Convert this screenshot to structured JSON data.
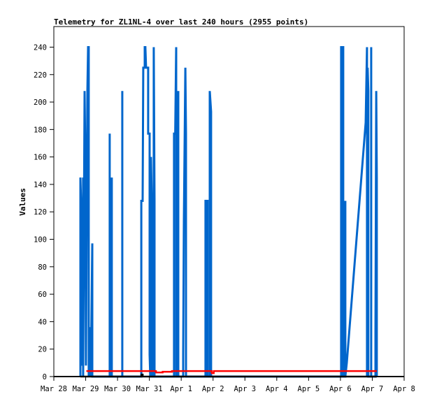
{
  "chart_data": {
    "type": "line",
    "title": "Telemetry for ZL1NL-4 over last 240 hours (2955 points)",
    "xlabel": "",
    "ylabel": "Values",
    "ylim": [
      0,
      255
    ],
    "yticks": [
      0,
      20,
      40,
      60,
      80,
      100,
      120,
      140,
      160,
      180,
      200,
      220,
      240
    ],
    "xticks": [
      "Mar 28",
      "Mar 29",
      "Mar 30",
      "Mar 31",
      "Apr 1",
      "Apr 2",
      "Apr 3",
      "Apr 4",
      "Apr 5",
      "Apr 6",
      "Apr 7",
      "Apr 8"
    ],
    "grid": false,
    "legend": "none",
    "series": [
      {
        "color": "#0066cc",
        "points": [
          [
            "Mar 28 20:00",
            0
          ],
          [
            "Mar 28 20:00",
            145
          ],
          [
            "Mar 28 20:30",
            128
          ],
          [
            "Mar 28 21:06",
            13
          ],
          [
            "Mar 28 21:36",
            8
          ],
          [
            "Mar 28 22:06",
            145
          ],
          [
            "Mar 28 22:06",
            0
          ],
          [
            "Mar 28 23:12",
            208
          ],
          [
            "Mar 28 23:42",
            160
          ],
          [
            "Mar 29 00:12",
            8
          ],
          [
            "Mar 29 01:18",
            208
          ],
          [
            "Mar 29 01:48",
            240
          ],
          [
            "Mar 29 02:18",
            240
          ],
          [
            "Mar 29 02:18",
            0
          ],
          [
            "Mar 29 03:24",
            12
          ],
          [
            "Mar 29 03:54",
            36
          ],
          [
            "Mar 29 03:54",
            0
          ],
          [
            "Mar 29 05:00",
            97
          ],
          [
            "Mar 29 05:00",
            0
          ],
          [
            "Mar 29 18:06",
            0
          ],
          [
            "Mar 29 18:06",
            177
          ],
          [
            "Mar 29 18:06",
            0
          ],
          [
            "Mar 29 19:42",
            145
          ],
          [
            "Mar 29 19:42",
            0
          ],
          [
            "Mar 30 03:36",
            0
          ],
          [
            "Mar 30 03:36",
            208
          ],
          [
            "Mar 30 03:36",
            0
          ],
          [
            "Mar 30 17:54",
            0
          ],
          [
            "Mar 30 17:54",
            128
          ],
          [
            "Mar 30 18:54",
            128
          ],
          [
            "Mar 30 19:24",
            225
          ],
          [
            "Mar 30 20:30",
            225
          ],
          [
            "Mar 30 20:30",
            240
          ],
          [
            "Mar 30 21:00",
            240
          ],
          [
            "Mar 30 21:30",
            225
          ],
          [
            "Mar 30 23:06",
            225
          ],
          [
            "Mar 30 23:06",
            177
          ],
          [
            "Mar 31 00:12",
            177
          ],
          [
            "Mar 31 00:12",
            16
          ],
          [
            "Mar 31 00:40",
            0
          ],
          [
            "Mar 31 01:12",
            0
          ],
          [
            "Mar 31 01:12",
            160
          ],
          [
            "Mar 31 01:48",
            128
          ],
          [
            "Mar 31 01:48",
            0
          ],
          [
            "Mar 31 03:18",
            0
          ],
          [
            "Mar 31 03:18",
            240
          ],
          [
            "Mar 31 03:54",
            128
          ],
          [
            "Mar 31 03:54",
            0
          ],
          [
            "Mar 31 18:36",
            0
          ],
          [
            "Mar 31 18:36",
            177
          ],
          [
            "Mar 31 19:30",
            177
          ],
          [
            "Mar 31 20:12",
            240
          ],
          [
            "Mar 31 20:12",
            0
          ],
          [
            "Mar 31 21:48",
            0
          ],
          [
            "Mar 31 21:48",
            208
          ],
          [
            "Mar 31 21:48",
            0
          ],
          [
            "Apr 1 01:30",
            0
          ],
          [
            "Apr 1 01:30",
            16
          ],
          [
            "Apr 1 02:00",
            113
          ],
          [
            "Apr 1 03:06",
            225
          ],
          [
            "Apr 1 03:36",
            177
          ],
          [
            "Apr 1 03:36",
            0
          ],
          [
            "Apr 1 18:18",
            0
          ],
          [
            "Apr 1 18:18",
            128
          ],
          [
            "Apr 1 19:54",
            128
          ],
          [
            "Apr 1 19:54",
            0
          ],
          [
            "Apr 1 21:30",
            0
          ],
          [
            "Apr 1 21:30",
            208
          ],
          [
            "Apr 1 22:30",
            193
          ],
          [
            "Apr 1 22:30",
            0
          ],
          [
            "Apr 6 00:30",
            0
          ],
          [
            "Apr 6 00:30",
            240
          ],
          [
            "Apr 6 02:06",
            240
          ],
          [
            "Apr 6 02:06",
            0
          ],
          [
            "Apr 6 03:42",
            0
          ],
          [
            "Apr 6 03:42",
            128
          ],
          [
            "Apr 6 03:42",
            0
          ],
          [
            "Apr 6 04:48",
            10
          ],
          [
            "Apr 6 19:00",
            185
          ],
          [
            "Apr 6 20:00",
            240
          ],
          [
            "Apr 6 20:00",
            0
          ],
          [
            "Apr 6 20:30",
            225
          ],
          [
            "Apr 6 21:00",
            208
          ],
          [
            "Apr 6 21:00",
            0
          ],
          [
            "Apr 6 23:12",
            0
          ],
          [
            "Apr 6 23:12",
            240
          ],
          [
            "Apr 6 23:12",
            0
          ],
          [
            "Apr 7 02:24",
            0
          ],
          [
            "Apr 7 02:24",
            32
          ],
          [
            "Apr 7 03:00",
            208
          ],
          [
            "Apr 7 03:24",
            145
          ],
          [
            "Apr 7 03:24",
            0
          ]
        ]
      },
      {
        "color": "#ff0000",
        "points": [
          [
            "Mar 29 00:30",
            4
          ],
          [
            "Mar 31 05:00",
            4
          ],
          [
            "Mar 31 05:00",
            3
          ],
          [
            "Mar 31 10:00",
            3
          ],
          [
            "Mar 31 10:00",
            3.5
          ],
          [
            "Mar 31 17:00",
            3.5
          ],
          [
            "Mar 31 17:00",
            4
          ],
          [
            "Apr 1 23:00",
            4
          ],
          [
            "Apr 1 23:00",
            2.5
          ],
          [
            "Apr 2 00:30",
            2.5
          ],
          [
            "Apr 2 00:30",
            4
          ],
          [
            "Apr 7 03:24",
            4
          ]
        ]
      },
      {
        "color": "#000000",
        "points": [
          [
            "Mar 28 20:00",
            0
          ],
          [
            "Mar 30 18:00",
            0
          ],
          [
            "Mar 30 18:00",
            1.5
          ],
          [
            "Mar 30 19:00",
            1.5
          ],
          [
            "Mar 30 19:00",
            0
          ],
          [
            "Apr 7 03:24",
            0
          ]
        ]
      }
    ]
  }
}
